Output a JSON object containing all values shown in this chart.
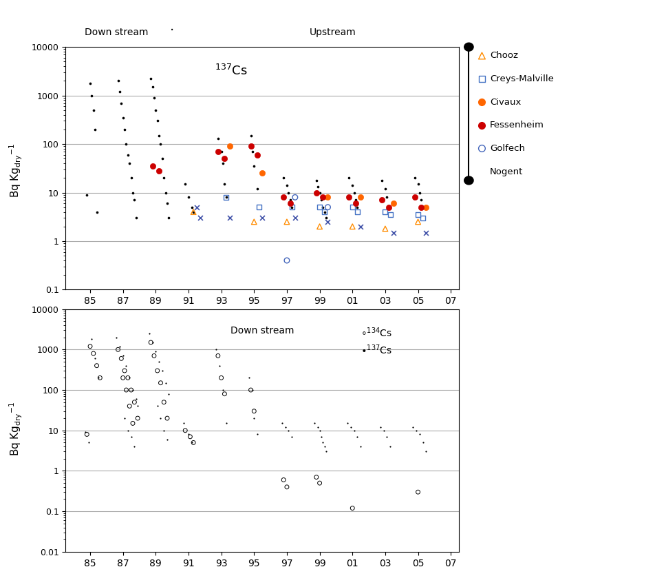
{
  "top_panel": {
    "ylim": [
      0.1,
      10000
    ],
    "yticks": [
      0.1,
      1,
      10,
      100,
      1000,
      10000
    ],
    "ytick_labels": [
      "0.1",
      "1",
      "10",
      "100",
      "1000",
      "10000"
    ],
    "hlines": [
      1,
      10,
      100,
      1000
    ],
    "cs137_label": "$^{137}$Cs",
    "downstream_label": "Down stream",
    "upstream_label": "Upstream",
    "black_dots": {
      "x": [
        84.8,
        85.0,
        85.1,
        85.2,
        85.3,
        85.4,
        86.7,
        86.8,
        86.9,
        87.0,
        87.1,
        87.2,
        87.3,
        87.4,
        87.5,
        87.6,
        87.7,
        87.8,
        88.7,
        88.8,
        88.9,
        89.0,
        89.1,
        89.2,
        89.3,
        89.4,
        89.5,
        89.6,
        89.7,
        89.8,
        90.8,
        91.0,
        91.2,
        91.3,
        92.8,
        93.0,
        93.1,
        93.2,
        93.3,
        94.8,
        94.9,
        95.0,
        95.2,
        96.8,
        97.0,
        97.1,
        97.2,
        97.3,
        98.8,
        98.9,
        99.0,
        99.1,
        99.2,
        99.3,
        99.4,
        100.8,
        101.0,
        101.1,
        101.2,
        101.3,
        102.8,
        103.0,
        103.1,
        103.2,
        104.8,
        105.0,
        105.1,
        105.2,
        105.3
      ],
      "y": [
        9.0,
        1800.0,
        1000.0,
        500.0,
        200.0,
        4.0,
        2000.0,
        1200.0,
        700.0,
        350.0,
        200.0,
        100.0,
        60.0,
        40.0,
        20.0,
        10.0,
        7.0,
        3.0,
        2200.0,
        1500.0,
        900.0,
        500.0,
        300.0,
        150.0,
        100.0,
        50.0,
        20.0,
        10.0,
        6.0,
        3.0,
        15.0,
        8.0,
        5.0,
        4.0,
        130.0,
        70.0,
        40.0,
        15.0,
        8.0,
        150.0,
        70.0,
        35.0,
        12.0,
        20.0,
        14.0,
        10.0,
        7.0,
        5.0,
        18.0,
        13.0,
        10.0,
        7.0,
        5.0,
        4.0,
        3.0,
        20.0,
        14.0,
        10.0,
        7.0,
        5.0,
        18.0,
        12.0,
        8.0,
        5.0,
        20.0,
        15.0,
        10.0,
        7.0,
        5.0
      ]
    },
    "chooz": {
      "x": [
        91.3,
        95.0,
        97.0,
        99.0,
        101.0,
        103.0,
        105.0
      ],
      "y": [
        4.0,
        2.5,
        2.5,
        2.0,
        2.0,
        1.8,
        2.5
      ]
    },
    "creys_malville": {
      "x": [
        93.3,
        95.3,
        97.3,
        99.0,
        99.3,
        101.0,
        101.3,
        103.0,
        103.3,
        105.0,
        105.3
      ],
      "y": [
        8.0,
        5.0,
        5.0,
        5.0,
        4.0,
        5.0,
        4.0,
        4.0,
        3.5,
        3.5,
        3.0
      ]
    },
    "civaux": {
      "x": [
        93.5,
        95.5,
        99.5,
        101.5,
        103.5,
        105.5
      ],
      "y": [
        90.0,
        25.0,
        8.0,
        8.0,
        6.0,
        5.0
      ]
    },
    "fessenheim": {
      "x": [
        88.8,
        89.2,
        92.8,
        93.2,
        94.8,
        95.2,
        96.8,
        97.2,
        98.8,
        99.2,
        100.8,
        101.2,
        102.8,
        103.2,
        104.8,
        105.2
      ],
      "y": [
        35.0,
        28.0,
        70.0,
        50.0,
        90.0,
        60.0,
        8.0,
        6.0,
        10.0,
        8.0,
        8.0,
        6.0,
        7.0,
        5.0,
        8.0,
        5.0
      ]
    },
    "golfech": {
      "x": [
        97.5,
        99.5,
        97.0
      ],
      "y": [
        8.0,
        5.0,
        0.4
      ]
    },
    "nogent": {
      "x": [
        91.5,
        91.7,
        93.5,
        95.5,
        97.5,
        99.5,
        101.5,
        103.5,
        105.5
      ],
      "y": [
        5.0,
        3.0,
        3.0,
        3.0,
        3.0,
        2.5,
        2.0,
        1.5,
        1.5
      ]
    }
  },
  "bottom_panel": {
    "ylim": [
      0.01,
      10000
    ],
    "yticks": [
      0.01,
      0.1,
      1,
      10,
      100,
      1000,
      10000
    ],
    "ytick_labels": [
      "0.01",
      "0.1",
      "1",
      "10",
      "100",
      "1000",
      "10000"
    ],
    "hlines": [
      0.1,
      1,
      10,
      100,
      1000
    ],
    "downstream_label": "Down stream",
    "cs134_label": "$^{134}$Cs",
    "cs137_label": "$^{137}$Cs",
    "cs137_dots": {
      "x": [
        84.7,
        84.9,
        85.1,
        85.3,
        85.5,
        86.6,
        86.8,
        87.0,
        87.2,
        87.4,
        87.6,
        87.8,
        87.9,
        87.1,
        87.3,
        87.5,
        87.7,
        88.6,
        88.8,
        89.0,
        89.2,
        89.4,
        89.6,
        89.8,
        89.1,
        89.3,
        89.5,
        89.7,
        90.7,
        91.0,
        91.2,
        92.7,
        92.9,
        93.1,
        93.3,
        94.7,
        94.9,
        95.0,
        95.2,
        96.7,
        96.9,
        97.1,
        97.3,
        98.7,
        98.9,
        99.0,
        99.1,
        99.2,
        99.3,
        99.4,
        100.7,
        100.9,
        101.1,
        101.3,
        101.5,
        102.7,
        102.9,
        103.1,
        103.3,
        104.7,
        104.9,
        105.1,
        105.3,
        105.5
      ],
      "y": [
        9.0,
        5.0,
        1800.0,
        600.0,
        200.0,
        2000.0,
        1200.0,
        700.0,
        400.0,
        200.0,
        100.0,
        60.0,
        40.0,
        20.0,
        10.0,
        7.0,
        4.0,
        2500.0,
        1500.0,
        900.0,
        500.0,
        300.0,
        150.0,
        80.0,
        40.0,
        20.0,
        10.0,
        6.0,
        15.0,
        8.0,
        5.0,
        1000.0,
        400.0,
        100.0,
        15.0,
        200.0,
        100.0,
        20.0,
        8.0,
        15.0,
        12.0,
        10.0,
        7.0,
        15.0,
        12.0,
        10.0,
        7.0,
        5.0,
        4.0,
        3.0,
        15.0,
        12.0,
        10.0,
        7.0,
        4.0,
        12.0,
        10.0,
        7.0,
        4.0,
        12.0,
        10.0,
        8.0,
        5.0,
        3.0
      ]
    },
    "cs134_circles": {
      "x": [
        84.8,
        85.0,
        85.2,
        85.4,
        85.6,
        86.7,
        86.9,
        87.1,
        87.3,
        87.5,
        87.7,
        87.9,
        87.0,
        87.2,
        87.4,
        87.6,
        88.7,
        88.9,
        89.1,
        89.3,
        89.5,
        89.7,
        90.8,
        91.1,
        91.3,
        92.8,
        93.0,
        93.2,
        94.8,
        95.0,
        96.8,
        97.0,
        98.8,
        99.0,
        101.0,
        105.0
      ],
      "y": [
        8.0,
        1200.0,
        800.0,
        400.0,
        200.0,
        1000.0,
        600.0,
        300.0,
        200.0,
        100.0,
        50.0,
        20.0,
        200.0,
        100.0,
        40.0,
        15.0,
        1500.0,
        700.0,
        300.0,
        150.0,
        50.0,
        20.0,
        10.0,
        7.0,
        5.0,
        700.0,
        200.0,
        80.0,
        100.0,
        30.0,
        0.6,
        0.4,
        0.7,
        0.5,
        0.12,
        0.3
      ]
    }
  },
  "xtick_positions": [
    85,
    87,
    89,
    91,
    93,
    95,
    97,
    99,
    101,
    103,
    105,
    107
  ],
  "xtick_labels": [
    "85",
    "87",
    "89",
    "91",
    "93",
    "95",
    "97",
    "99",
    "01",
    "03",
    "05",
    "07"
  ],
  "xlim": [
    83.5,
    107.5
  ],
  "legend_line_color": "black",
  "legend_items": [
    {
      "label": "Chooz",
      "marker": "^",
      "mfc": "none",
      "mec": "#FF8C00",
      "ms": 7
    },
    {
      "label": "Creys-Malville",
      "marker": "s",
      "mfc": "none",
      "mec": "#4472C4",
      "ms": 6
    },
    {
      "label": "Civaux",
      "marker": "o",
      "mfc": "#FF6600",
      "mec": "#FF6600",
      "ms": 7
    },
    {
      "label": "Fessenheim",
      "marker": "o",
      "mfc": "#CC0000",
      "mec": "#CC0000",
      "ms": 7
    },
    {
      "label": "Golfech",
      "marker": "o",
      "mfc": "none",
      "mec": "#4466BB",
      "ms": 7
    },
    {
      "label": "Nogent",
      "marker": "x",
      "mfc": "none",
      "mec": "#4455AA",
      "ms": 7
    }
  ],
  "ylabel": "Bq Kg$_\\mathrm{dry}$$^{-1}$",
  "bg_color": "white",
  "hline_color": "#AAAAAA",
  "hline_lw": 0.8
}
